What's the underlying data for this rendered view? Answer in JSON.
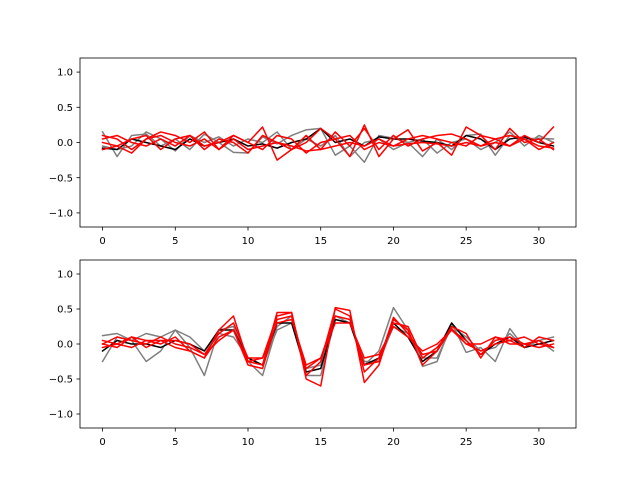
{
  "chart_data": [
    {
      "type": "line",
      "title": "",
      "xlabel": "",
      "ylabel": "",
      "xlim": [
        -1.55,
        32.55
      ],
      "ylim": [
        -1.2,
        1.2
      ],
      "xticks": [
        0,
        5,
        10,
        15,
        20,
        25,
        30
      ],
      "xtick_labels": [
        "0",
        "5",
        "10",
        "15",
        "20",
        "25",
        "30"
      ],
      "yticks": [
        -1.0,
        -0.5,
        0.0,
        0.5,
        1.0
      ],
      "ytick_labels": [
        "−1.0",
        "−0.5",
        "0.0",
        "0.5",
        "1.0"
      ],
      "grid": false,
      "series": [
        {
          "color": "#7f7f7f",
          "values": [
            0.15,
            -0.2,
            0.1,
            0.12,
            -0.05,
            0.05,
            -0.1,
            0.12,
            0.0,
            -0.14,
            -0.15,
            0.08,
            -0.02,
            0.1,
            0.18,
            0.2,
            -0.18,
            -0.05,
            -0.28,
            0.1,
            0.06,
            0.0,
            -0.2,
            0.05,
            -0.1,
            0.1,
            0.12,
            -0.18,
            0.1,
            0.05,
            0.06,
            0.05
          ]
        },
        {
          "color": "#7f7f7f",
          "values": [
            -0.05,
            -0.1,
            -0.05,
            0.15,
            0.05,
            -0.12,
            0.1,
            0.0,
            0.08,
            -0.05,
            0.05,
            0.0,
            0.15,
            -0.1,
            0.05,
            -0.05,
            0.1,
            -0.2,
            0.0,
            0.05,
            -0.1,
            0.0,
            0.05,
            -0.15,
            0.0,
            0.05,
            -0.1,
            0.0,
            0.15,
            -0.05,
            0.1,
            0.0
          ]
        },
        {
          "color": "#000000",
          "values": [
            -0.08,
            -0.1,
            0.05,
            0.0,
            -0.05,
            -0.1,
            0.05,
            -0.05,
            0.0,
            0.05,
            -0.05,
            -0.02,
            -0.08,
            0.0,
            0.05,
            0.2,
            0.0,
            0.05,
            -0.05,
            0.08,
            0.05,
            0.05,
            0.02,
            0.0,
            -0.05,
            0.1,
            0.05,
            -0.1,
            0.05,
            0.08,
            0.0,
            -0.05
          ]
        },
        {
          "color": "#ff0000",
          "values": [
            0.1,
            0.05,
            -0.1,
            0.05,
            0.15,
            0.1,
            0.0,
            0.15,
            -0.1,
            0.1,
            0.0,
            0.22,
            -0.25,
            -0.1,
            0.0,
            0.2,
            0.05,
            -0.2,
            0.25,
            -0.2,
            0.05,
            0.18,
            -0.12,
            0.0,
            -0.18,
            0.22,
            0.1,
            -0.1,
            0.2,
            0.0,
            0.05,
            -0.1
          ]
        },
        {
          "color": "#ff0000",
          "values": [
            0.0,
            -0.05,
            0.05,
            0.1,
            -0.1,
            0.05,
            0.1,
            -0.1,
            0.05,
            0.0,
            -0.15,
            0.1,
            0.0,
            -0.1,
            0.1,
            -0.1,
            0.15,
            -0.05,
            0.2,
            -0.1,
            0.1,
            -0.05,
            0.05,
            0.1,
            0.12,
            0.05,
            -0.05,
            0.05,
            0.1,
            0.05,
            -0.1,
            0.0
          ]
        },
        {
          "color": "#ff0000",
          "values": [
            0.05,
            0.1,
            0.0,
            -0.05,
            0.05,
            -0.05,
            0.1,
            -0.05,
            0.0,
            0.1,
            0.0,
            -0.1,
            0.1,
            0.05,
            -0.15,
            0.0,
            0.05,
            0.1,
            -0.1,
            0.0,
            -0.05,
            0.05,
            0.1,
            0.05,
            0.0,
            -0.05,
            0.1,
            0.05,
            -0.05,
            0.1,
            0.0,
            0.22
          ]
        },
        {
          "color": "#ff0000",
          "values": [
            -0.1,
            -0.05,
            -0.15,
            0.05,
            0.1,
            0.0,
            -0.05,
            0.05,
            -0.1,
            0.05,
            -0.1,
            -0.05,
            0.0,
            -0.05,
            -0.12,
            -0.1,
            -0.05,
            0.0,
            -0.05,
            0.05,
            -0.05,
            -0.02,
            0.0,
            -0.02,
            -0.05,
            0.0,
            -0.05,
            0.0,
            -0.05,
            0.05,
            -0.05,
            -0.08
          ]
        }
      ]
    },
    {
      "type": "line",
      "title": "",
      "xlabel": "",
      "ylabel": "",
      "xlim": [
        -1.55,
        32.55
      ],
      "ylim": [
        -1.2,
        1.2
      ],
      "xticks": [
        0,
        5,
        10,
        15,
        20,
        25,
        30
      ],
      "xtick_labels": [
        "0",
        "5",
        "10",
        "15",
        "20",
        "25",
        "30"
      ],
      "yticks": [
        -1.0,
        -0.5,
        0.0,
        0.5,
        1.0
      ],
      "ytick_labels": [
        "−1.0",
        "−0.5",
        "0.0",
        "0.5",
        "1.0"
      ],
      "grid": false,
      "series": [
        {
          "color": "#7f7f7f",
          "values": [
            0.12,
            0.15,
            0.05,
            0.15,
            0.1,
            0.2,
            -0.05,
            -0.45,
            0.2,
            0.25,
            -0.25,
            -0.45,
            0.25,
            0.4,
            -0.45,
            -0.45,
            0.35,
            0.3,
            -0.3,
            -0.1,
            0.52,
            0.2,
            -0.32,
            -0.25,
            0.3,
            -0.12,
            -0.05,
            -0.25,
            0.22,
            -0.05,
            0.05,
            0.1
          ]
        },
        {
          "color": "#7f7f7f",
          "values": [
            -0.25,
            0.1,
            0.05,
            -0.25,
            -0.1,
            0.2,
            0.1,
            -0.1,
            0.15,
            0.1,
            -0.2,
            -0.3,
            0.2,
            0.3,
            -0.35,
            -0.3,
            0.4,
            0.3,
            -0.25,
            -0.25,
            0.25,
            0.15,
            -0.2,
            -0.2,
            0.25,
            0.1,
            -0.1,
            -0.05,
            0.15,
            -0.05,
            0.05,
            -0.1
          ]
        },
        {
          "color": "#000000",
          "values": [
            -0.1,
            0.05,
            0.0,
            0.0,
            -0.05,
            0.05,
            0.0,
            -0.1,
            0.2,
            0.2,
            -0.2,
            -0.3,
            0.3,
            0.3,
            -0.4,
            -0.35,
            0.35,
            0.3,
            -0.3,
            -0.2,
            0.3,
            0.1,
            -0.25,
            -0.1,
            0.3,
            0.05,
            -0.15,
            0.0,
            0.1,
            -0.05,
            0.0,
            0.05
          ]
        },
        {
          "color": "#ff0000",
          "values": [
            0.05,
            0.0,
            0.1,
            -0.05,
            0.05,
            -0.05,
            -0.1,
            -0.2,
            0.2,
            0.4,
            -0.25,
            -0.3,
            0.45,
            0.45,
            -0.5,
            -0.6,
            0.52,
            0.48,
            -0.55,
            -0.3,
            0.35,
            0.2,
            -0.3,
            -0.1,
            0.25,
            0.15,
            -0.2,
            0.1,
            0.05,
            -0.05,
            0.1,
            0.05
          ]
        },
        {
          "color": "#ff0000",
          "values": [
            0.0,
            0.1,
            0.05,
            0.0,
            0.1,
            0.0,
            -0.05,
            -0.15,
            0.15,
            0.3,
            -0.2,
            -0.2,
            0.4,
            0.45,
            -0.45,
            -0.25,
            0.5,
            0.4,
            -0.4,
            -0.2,
            0.3,
            0.25,
            -0.2,
            -0.05,
            0.2,
            0.05,
            -0.15,
            0.05,
            0.1,
            0.0,
            -0.05,
            0.0
          ]
        },
        {
          "color": "#ff0000",
          "values": [
            -0.05,
            0.0,
            -0.05,
            0.05,
            0.0,
            0.1,
            -0.1,
            -0.2,
            0.1,
            0.2,
            -0.3,
            -0.35,
            0.35,
            0.4,
            -0.35,
            -0.2,
            0.4,
            0.35,
            -0.3,
            -0.25,
            0.38,
            0.15,
            -0.15,
            -0.1,
            0.22,
            0.0,
            -0.1,
            0.0,
            0.05,
            0.1,
            0.0,
            -0.05
          ]
        },
        {
          "color": "#ff0000",
          "values": [
            0.0,
            -0.05,
            0.1,
            0.05,
            0.05,
            0.05,
            0.0,
            -0.15,
            0.05,
            0.2,
            -0.25,
            -0.2,
            0.3,
            0.35,
            -0.3,
            -0.2,
            0.3,
            0.3,
            -0.2,
            -0.15,
            0.25,
            0.1,
            -0.1,
            0.0,
            0.2,
            0.0,
            0.0,
            0.1,
            0.0,
            0.0,
            0.05,
            -0.05
          ]
        }
      ]
    }
  ]
}
